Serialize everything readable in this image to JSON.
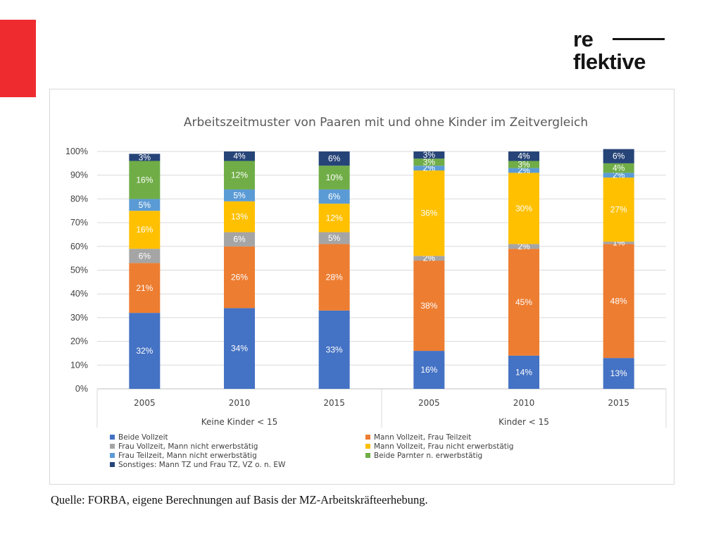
{
  "logo": {
    "line1": "re",
    "line2": "flektive"
  },
  "source": "Quelle: FORBA, eigene Berechnungen auf Basis der MZ-Arbeitskräfteerhebung.",
  "colors": {
    "brand_red": "#ee2b2f"
  },
  "chart_data": {
    "type": "bar",
    "stacked": true,
    "title": "Arbeitszeitmuster von Paaren mit und ohne Kinder im Zeitvergleich",
    "ylim": [
      0,
      100
    ],
    "yticks": [
      "0%",
      "10%",
      "20%",
      "30%",
      "40%",
      "50%",
      "60%",
      "70%",
      "80%",
      "90%",
      "100%"
    ],
    "grid": true,
    "legend_position": "bottom",
    "groups": [
      {
        "label": "Keine Kinder < 15",
        "categories": [
          "2005",
          "2010",
          "2015"
        ]
      },
      {
        "label": "Kinder < 15",
        "categories": [
          "2005",
          "2010",
          "2015"
        ]
      }
    ],
    "categories": [
      "2005",
      "2010",
      "2015",
      "2005",
      "2010",
      "2015"
    ],
    "series": [
      {
        "name": "Beide Vollzeit",
        "color": "#4472c4",
        "values": [
          32,
          34,
          33,
          16,
          14,
          13
        ],
        "labels": [
          "32%",
          "34%",
          "33%",
          "16%",
          "14%",
          "13%"
        ]
      },
      {
        "name": "Mann Vollzeit, Frau Teilzeit",
        "color": "#ed7d31",
        "values": [
          21,
          26,
          28,
          38,
          45,
          48
        ],
        "labels": [
          "21%",
          "26%",
          "28%",
          "38%",
          "45%",
          "48%"
        ]
      },
      {
        "name": "Frau Vollzeit, Mann nicht erwerbstätig",
        "color": "#a5a5a5",
        "values": [
          6,
          6,
          5,
          2,
          2,
          1
        ],
        "labels": [
          "6%",
          "6%",
          "5%",
          "2%",
          "2%",
          "1%"
        ]
      },
      {
        "name": "Mann Vollzeit, Frau nicht erwerbstätig",
        "color": "#ffc000",
        "values": [
          16,
          13,
          12,
          36,
          30,
          27
        ],
        "labels": [
          "16%",
          "13%",
          "12%",
          "36%",
          "30%",
          "27%"
        ]
      },
      {
        "name": "Frau Teilzeit, Mann nicht erwerbstätig",
        "color": "#5b9bd5",
        "values": [
          5,
          5,
          6,
          2,
          2,
          2
        ],
        "labels": [
          "5%",
          "5%",
          "6%",
          "2%",
          "2%",
          "2%"
        ]
      },
      {
        "name": "Beide Parnter n. erwerbstätig",
        "color": "#70ad47",
        "values": [
          16,
          12,
          10,
          3,
          3,
          4
        ],
        "labels": [
          "16%",
          "12%",
          "10%",
          "3%",
          "3%",
          "4%"
        ]
      },
      {
        "name": "Sonstiges: Mann TZ und Frau TZ, VZ o. n. EW",
        "color": "#264478",
        "values": [
          3,
          4,
          6,
          3,
          4,
          6
        ],
        "labels": [
          "3%",
          "4%",
          "6%",
          "3%",
          "4%",
          "6%"
        ]
      }
    ]
  }
}
